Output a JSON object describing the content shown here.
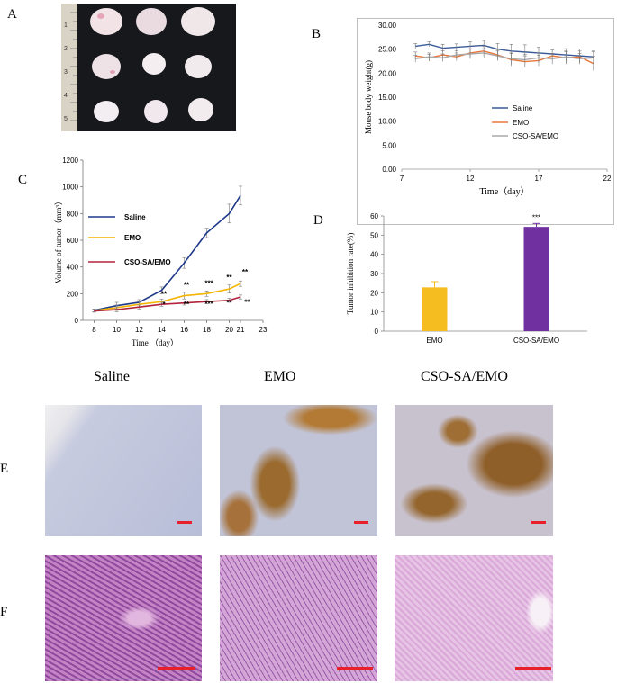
{
  "panels": {
    "a": "A",
    "b": "B",
    "c": "C",
    "d": "D",
    "e": "E",
    "f": "F"
  },
  "photo": {
    "ruler_marks": [
      "1",
      "2",
      "3",
      "4",
      "5"
    ]
  },
  "columns": [
    "Saline",
    "EMO",
    "CSO-SA/EMO"
  ],
  "colors": {
    "saline": "#1f3a8a",
    "emo": "#f4b400",
    "cso": "#b0233a",
    "b_saline": "#3a5a99",
    "b_emo": "#e8763a",
    "b_cso": "#aaaaaa",
    "bar_emo": "#f5bd1f",
    "bar_cso": "#7030a0",
    "ihc_bg": "#c9cde0",
    "ihc_brown": "#9a6a2e",
    "he_pink": "#c98bc8",
    "scale": "#e8202a"
  },
  "chart_data": [
    {
      "id": "B",
      "type": "line",
      "xlabel": "Time（day）",
      "ylabel": "Mouse body weight(g)",
      "xlim": [
        7,
        22
      ],
      "ylim": [
        0,
        30
      ],
      "xticks": [
        7,
        12,
        17,
        22
      ],
      "yticks": [
        "0.00",
        "5.00",
        "10.00",
        "15.00",
        "20.00",
        "25.00",
        "30.00"
      ],
      "legend_position": "right",
      "x": [
        8,
        9,
        10,
        11,
        12,
        13,
        14,
        15,
        16,
        17,
        18,
        19,
        20,
        21
      ],
      "series": [
        {
          "name": "Saline",
          "values": [
            25.6,
            26.0,
            25.2,
            25.4,
            25.6,
            25.8,
            25.0,
            24.6,
            24.4,
            24.2,
            24.0,
            23.8,
            23.6,
            23.4
          ],
          "err": [
            0.6,
            0.5,
            0.8,
            0.7,
            0.9,
            1.0,
            1.2,
            1.4,
            1.5,
            1.2,
            1.0,
            1.3,
            1.4,
            1.2
          ]
        },
        {
          "name": "EMO",
          "values": [
            23.6,
            23.2,
            23.8,
            23.4,
            24.2,
            24.6,
            23.8,
            22.8,
            22.4,
            22.6,
            23.6,
            23.2,
            23.4,
            22.0
          ],
          "err": [
            0.8,
            0.7,
            0.9,
            0.8,
            0.9,
            1.0,
            1.1,
            1.3,
            1.2,
            1.1,
            1.2,
            1.3,
            1.2,
            1.5
          ]
        },
        {
          "name": "CSO-SA/EMO",
          "values": [
            23.0,
            23.4,
            23.2,
            23.8,
            24.0,
            24.2,
            23.6,
            23.0,
            22.8,
            23.2,
            23.0,
            23.4,
            23.0,
            23.2
          ],
          "err": [
            0.7,
            0.8,
            0.8,
            0.9,
            1.0,
            0.9,
            1.0,
            1.2,
            1.1,
            1.0,
            1.1,
            1.2,
            1.1,
            1.3
          ]
        }
      ]
    },
    {
      "id": "C",
      "type": "line",
      "xlabel": "Time （day）",
      "ylabel": "Volume of tumor（mm³）",
      "xlim": [
        7,
        23
      ],
      "ylim": [
        0,
        1200
      ],
      "xticks": [
        8,
        10,
        12,
        14,
        16,
        18,
        20,
        21,
        23
      ],
      "yticks": [
        0,
        200,
        400,
        600,
        800,
        1000,
        1200
      ],
      "legend_position": "left",
      "x": [
        8,
        10,
        12,
        14,
        16,
        18,
        20,
        21
      ],
      "series": [
        {
          "name": "Saline",
          "values": [
            75,
            110,
            135,
            225,
            430,
            655,
            800,
            935
          ],
          "err": [
            10,
            25,
            20,
            25,
            40,
            35,
            70,
            70
          ]
        },
        {
          "name": "EMO",
          "values": [
            72,
            95,
            120,
            140,
            185,
            200,
            235,
            275
          ],
          "err": [
            10,
            20,
            20,
            20,
            25,
            20,
            30,
            20
          ]
        },
        {
          "name": "CSO-SA/EMO",
          "values": [
            70,
            80,
            100,
            120,
            130,
            140,
            150,
            175
          ],
          "err": [
            8,
            15,
            15,
            15,
            15,
            15,
            15,
            15
          ]
        }
      ],
      "annotations": [
        {
          "x": 14.2,
          "y": 180,
          "text": "**"
        },
        {
          "x": 14.2,
          "y": 100,
          "text": "*"
        },
        {
          "x": 16.2,
          "y": 245,
          "text": "**"
        },
        {
          "x": 16.2,
          "y": 100,
          "text": "**"
        },
        {
          "x": 18.2,
          "y": 260,
          "text": "***"
        },
        {
          "x": 18.2,
          "y": 105,
          "text": "***"
        },
        {
          "x": 20.0,
          "y": 305,
          "text": "**"
        },
        {
          "x": 20.0,
          "y": 115,
          "text": "**"
        },
        {
          "x": 21.4,
          "y": 345,
          "text": "**"
        },
        {
          "x": 21.6,
          "y": 118,
          "text": "**"
        }
      ]
    },
    {
      "id": "D",
      "type": "bar",
      "ylabel": "Tumor inhibition rate(%)",
      "ylim": [
        0,
        60
      ],
      "yticks": [
        0,
        10,
        20,
        30,
        40,
        50,
        60
      ],
      "categories": [
        "EMO",
        "CSO-SA/EMO"
      ],
      "values": [
        22.8,
        54.3
      ],
      "err": [
        3.0,
        1.8
      ],
      "annotations": [
        {
          "category": "CSO-SA/EMO",
          "text": "***"
        }
      ]
    }
  ]
}
